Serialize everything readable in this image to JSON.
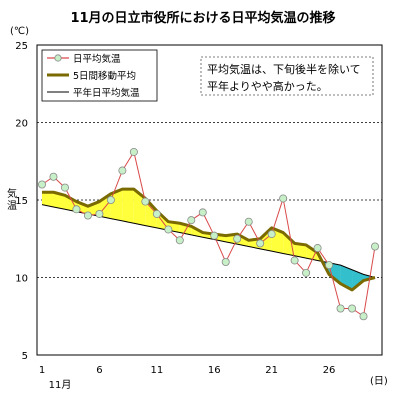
{
  "chart_data": {
    "type": "line",
    "title": "11月の日立市役所における日平均気温の推移",
    "y_unit": "(℃)",
    "ylabel": "気温",
    "x_unit": "(日)",
    "x_month_label": "11月",
    "ylim": [
      5,
      25
    ],
    "y_ticks": [
      5,
      10,
      15,
      20,
      25
    ],
    "x_ticks": [
      1,
      6,
      11,
      16,
      21,
      26
    ],
    "x": [
      1,
      2,
      3,
      4,
      5,
      6,
      7,
      8,
      9,
      10,
      11,
      12,
      13,
      14,
      15,
      16,
      17,
      18,
      19,
      20,
      21,
      22,
      23,
      24,
      25,
      26,
      27,
      28,
      29,
      30
    ],
    "grid": "horizontal dotted at 10, 15, 20",
    "legend_position": "top-left",
    "series": [
      {
        "name": "日平均気温",
        "color": "#d94a4a",
        "marker_fill": "#c8f0c8",
        "values": [
          16.0,
          16.5,
          15.8,
          14.4,
          14.0,
          14.1,
          15.0,
          16.9,
          18.1,
          14.9,
          14.1,
          13.1,
          12.4,
          13.7,
          14.2,
          12.7,
          11.0,
          12.5,
          13.6,
          12.2,
          12.8,
          15.1,
          11.1,
          10.3,
          11.9,
          10.8,
          8.0,
          8.0,
          7.5,
          12.0
        ]
      },
      {
        "name": "5日間移動平均",
        "color": "#7a6a00",
        "values": [
          15.5,
          15.5,
          15.3,
          14.9,
          14.6,
          14.9,
          15.4,
          15.7,
          15.7,
          15.1,
          14.3,
          13.6,
          13.5,
          13.3,
          12.9,
          12.8,
          12.7,
          12.8,
          12.4,
          12.5,
          13.2,
          12.9,
          12.2,
          12.1,
          11.6,
          10.2,
          9.6,
          9.2,
          9.8,
          10.0
        ]
      },
      {
        "name": "平年日平均気温",
        "color": "#000000",
        "values": [
          14.7,
          14.55,
          14.4,
          14.25,
          14.1,
          13.95,
          13.8,
          13.65,
          13.5,
          13.35,
          13.2,
          13.05,
          12.9,
          12.75,
          12.6,
          12.45,
          12.3,
          12.15,
          12.0,
          11.85,
          11.7,
          11.55,
          11.4,
          11.25,
          11.1,
          10.95,
          10.8,
          10.5,
          10.2,
          10.0
        ]
      }
    ],
    "fill_colors": {
      "above": "#ffff3c",
      "below": "#33c0cc"
    },
    "annotation": "平均気温は、下旬後半を除いて\n平年よりやや高かった。"
  }
}
